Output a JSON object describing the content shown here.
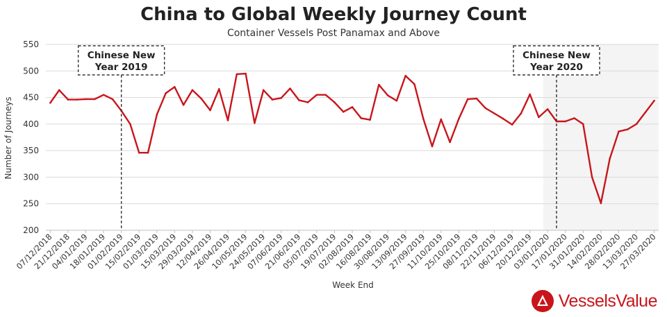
{
  "chart_data": {
    "type": "line",
    "title": "China to Global Weekly Journey Count",
    "subtitle": "Container Vessels Post Panamax and Above",
    "xlabel": "Week End",
    "ylabel": "Number  of Journeys",
    "ylim": [
      200,
      550
    ],
    "yticks": [
      200,
      250,
      300,
      350,
      400,
      450,
      500,
      550
    ],
    "grid": "horizontal",
    "line_color": "#c8151b",
    "shade_color": "#f4f4f4",
    "x_tick_labels": [
      "07/12/2018",
      "21/12/2018",
      "04/01/2019",
      "18/01/2019",
      "01/02/2019",
      "15/02/2019",
      "01/03/2019",
      "15/03/2019",
      "29/03/2019",
      "12/04/2019",
      "26/04/2019",
      "10/05/2019",
      "24/05/2019",
      "07/06/2019",
      "21/06/2019",
      "05/07/2019",
      "19/07/2019",
      "02/08/2019",
      "16/08/2019",
      "30/08/2019",
      "13/09/2019",
      "27/09/2019",
      "11/10/2019",
      "25/10/2019",
      "08/11/2019",
      "22/11/2019",
      "06/12/2019",
      "20/12/2019",
      "03/01/2020",
      "17/01/2020",
      "31/01/2020",
      "14/02/2020",
      "28/02/2020",
      "13/03/2020",
      "27/03/2020"
    ],
    "values": [
      440,
      464,
      446,
      446,
      447,
      447,
      455,
      447,
      425,
      400,
      346,
      346,
      418,
      458,
      470,
      436,
      464,
      448,
      426,
      466,
      407,
      494,
      495,
      402,
      464,
      446,
      449,
      467,
      445,
      441,
      455,
      455,
      441,
      423,
      432,
      411,
      408,
      474,
      454,
      444,
      491,
      475,
      410,
      358,
      409,
      366,
      410,
      447,
      448,
      430,
      420,
      410,
      399,
      420,
      456,
      413,
      428,
      405,
      405,
      411,
      400,
      300,
      251,
      335,
      386,
      390,
      400,
      422,
      444
    ],
    "shaded_from_index": 56,
    "annotations": [
      {
        "text_line1": "Chinese New",
        "text_line2": "Year 2019",
        "index": 8
      },
      {
        "text_line1": "Chinese New",
        "text_line2": "Year 2020",
        "index": 57
      }
    ]
  },
  "brand": {
    "name": "VesselsValue",
    "color": "#c8151b"
  }
}
